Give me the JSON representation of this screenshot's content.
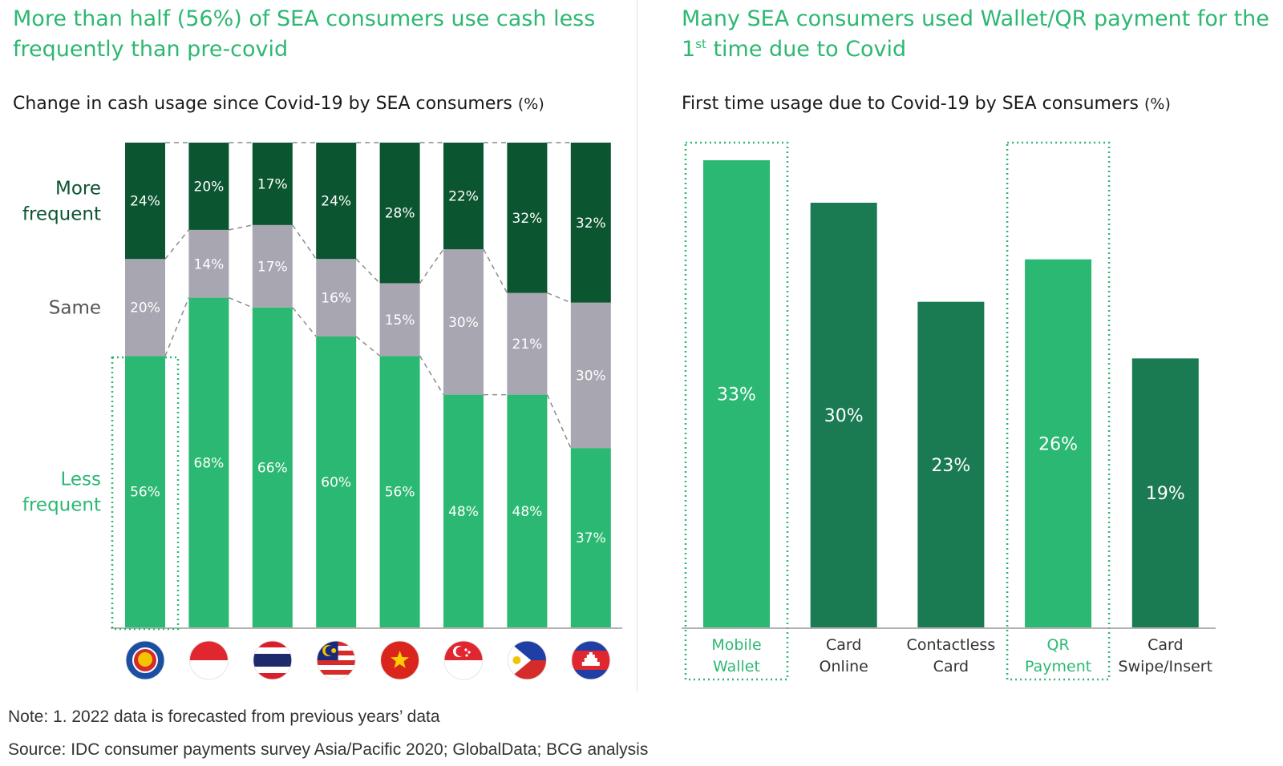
{
  "left": {
    "headline": "More than half (56%) of SEA consumers use cash less frequently than pre-covid",
    "subtitle": "Change in cash usage since Covid-19 by SEA consumers",
    "unit": "(%)"
  },
  "right": {
    "headline_main": "Many SEA consumers used Wallet/QR payment for the 1",
    "headline_sup": "st",
    "headline_end": " time due to Covid",
    "subtitle": "First time usage due to Covid-19 by SEA consumers",
    "unit": "(%)"
  },
  "footer": {
    "note": "Note: 1. 2022 data is forecasted from previous years’ data",
    "source": "Source: IDC consumer payments survey Asia/Pacific 2020; GlobalData; BCG analysis"
  },
  "colors": {
    "headline": "#2db872",
    "more": "#0b5530",
    "same": "#a8a6b1",
    "less": "#2bb872",
    "dark_bar": "#1a7a52",
    "highlight_bar": "#2bb872",
    "highlight_label": "#2db872"
  },
  "chart_data": [
    {
      "type": "bar",
      "stacked": true,
      "categories": [
        "ASEAN",
        "Indonesia",
        "Thailand",
        "Malaysia",
        "Vietnam",
        "Singapore",
        "Philippines",
        "Cambodia"
      ],
      "category_icons": [
        "asean-flag-icon",
        "indonesia-flag-icon",
        "thailand-flag-icon",
        "malaysia-flag-icon",
        "vietnam-flag-icon",
        "singapore-flag-icon",
        "philippines-flag-icon",
        "cambodia-flag-icon"
      ],
      "series": [
        {
          "name": "Less frequent",
          "values": [
            56,
            68,
            66,
            60,
            56,
            48,
            48,
            37
          ]
        },
        {
          "name": "Same",
          "values": [
            20,
            14,
            17,
            16,
            15,
            30,
            21,
            30
          ]
        },
        {
          "name": "More frequent",
          "values": [
            24,
            20,
            17,
            24,
            28,
            22,
            32,
            32
          ]
        }
      ],
      "legend_placement": "left",
      "ylim": [
        0,
        100
      ],
      "highlight_category": "ASEAN",
      "value_suffix": "%"
    },
    {
      "type": "bar",
      "categories": [
        "Mobile Wallet",
        "Card Online",
        "Contactless Card",
        "QR Payment",
        "Card Swipe/Insert"
      ],
      "category_lines": [
        [
          "Mobile",
          "Wallet"
        ],
        [
          "Card",
          "Online"
        ],
        [
          "Contactless",
          "Card"
        ],
        [
          "QR",
          "Payment"
        ],
        [
          "Card",
          "Swipe/Insert"
        ]
      ],
      "values": [
        33,
        30,
        23,
        26,
        19
      ],
      "highlighted": [
        true,
        false,
        false,
        true,
        false
      ],
      "value_suffix": "%"
    }
  ]
}
